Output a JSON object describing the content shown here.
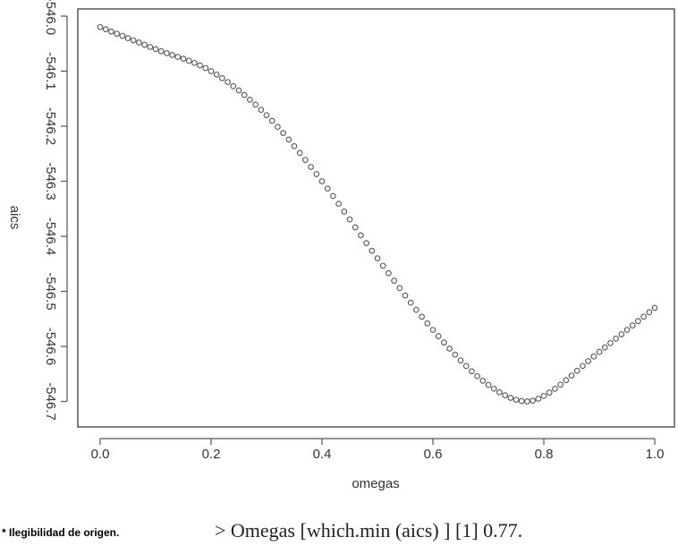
{
  "chart_data": {
    "type": "scatter",
    "xlabel": "omegas",
    "ylabel": "aics",
    "xlim": [
      0.0,
      1.0
    ],
    "ylim": [
      -546.72,
      -545.98
    ],
    "x_ticks": [
      "0.0",
      "0.2",
      "0.4",
      "0.6",
      "0.8",
      "1.0"
    ],
    "y_ticks": [
      "-546.0",
      "-546.1",
      "-546.2",
      "-546.3",
      "-546.4",
      "-546.5",
      "-546.6",
      "-546.7"
    ],
    "marker": "open-circle",
    "grid": false,
    "anchor_points": {
      "x": [
        0.0,
        0.1,
        0.2,
        0.3,
        0.4,
        0.5,
        0.6,
        0.7,
        0.77,
        0.8,
        0.9,
        1.0
      ],
      "y": [
        -546.02,
        -546.06,
        -546.1,
        -546.18,
        -546.3,
        -546.44,
        -546.57,
        -546.67,
        -546.7,
        -546.69,
        -546.61,
        -546.53
      ]
    },
    "n_points": 101,
    "minimum": {
      "x": 0.77,
      "y": -546.7
    }
  },
  "footer": {
    "note": "* Ilegibilidad de origen.",
    "console_line": "> Omegas [which.min (aics) ] [1]  0.77."
  }
}
